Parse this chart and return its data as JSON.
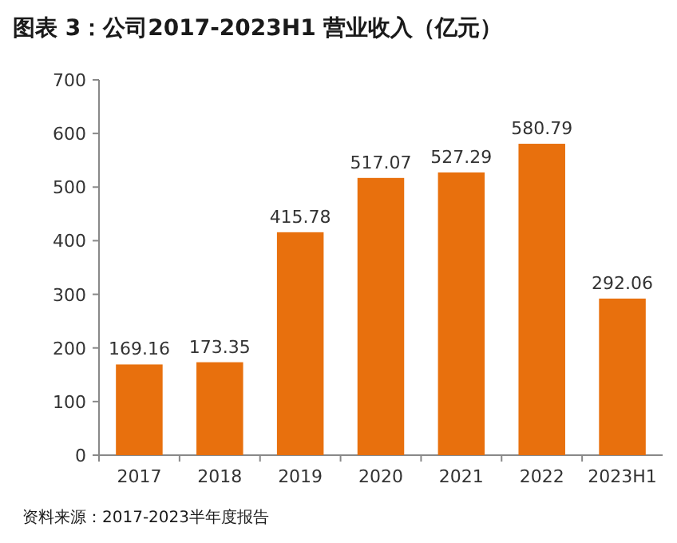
{
  "chart_data": {
    "type": "bar",
    "title": "图表 3：公司2017-2023H1 营业收入（亿元）",
    "categories": [
      "2017",
      "2018",
      "2019",
      "2020",
      "2021",
      "2022",
      "2023H1"
    ],
    "values": [
      169.16,
      173.35,
      415.78,
      517.07,
      527.29,
      580.79,
      292.06
    ],
    "color": "#e8700d",
    "ylim": [
      0,
      700
    ],
    "yticks": [
      0,
      100,
      200,
      300,
      400,
      500,
      600,
      700
    ],
    "data_labels": true,
    "grid": false,
    "annotations": [
      "资料来源：2017-2023半年度报告"
    ]
  }
}
